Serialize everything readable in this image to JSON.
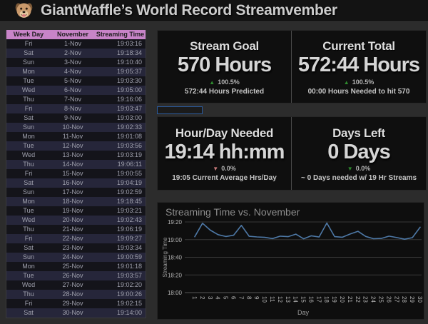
{
  "header": {
    "title": "GiantWaffle’s World Record Streamvember"
  },
  "colors": {
    "page_bg": "#2c2c2c",
    "header_bg": "#131313",
    "panel_bg": "#0f0f0f",
    "table_header_pink": "#c884c8",
    "row_odd": "#14141a",
    "row_even": "#26263a",
    "line_blue": "#4e79a7",
    "green": "#2e8b2e",
    "red": "#c97a7a",
    "grid_gray": "#3a3a3a",
    "selection_blue": "#2b5b9e"
  },
  "table": {
    "columns": [
      "Week Day",
      "November",
      "Streaming Time"
    ],
    "rows": [
      [
        "Fri",
        "1-Nov",
        "19:03:16"
      ],
      [
        "Sat",
        "2-Nov",
        "19:18:34"
      ],
      [
        "Sun",
        "3-Nov",
        "19:10:40"
      ],
      [
        "Mon",
        "4-Nov",
        "19:05:37"
      ],
      [
        "Tue",
        "5-Nov",
        "19:03:30"
      ],
      [
        "Wed",
        "6-Nov",
        "19:05:00"
      ],
      [
        "Thu",
        "7-Nov",
        "19:16:06"
      ],
      [
        "Fri",
        "8-Nov",
        "19:03:47"
      ],
      [
        "Sat",
        "9-Nov",
        "19:03:00"
      ],
      [
        "Sun",
        "10-Nov",
        "19:02:33"
      ],
      [
        "Mon",
        "11-Nov",
        "19:01:08"
      ],
      [
        "Tue",
        "12-Nov",
        "19:03:56"
      ],
      [
        "Wed",
        "13-Nov",
        "19:03:19"
      ],
      [
        "Thu",
        "14-Nov",
        "19:06:11"
      ],
      [
        "Fri",
        "15-Nov",
        "19:00:55"
      ],
      [
        "Sat",
        "16-Nov",
        "19:04:19"
      ],
      [
        "Sun",
        "17-Nov",
        "19:02:59"
      ],
      [
        "Mon",
        "18-Nov",
        "19:18:45"
      ],
      [
        "Tue",
        "19-Nov",
        "19:03:21"
      ],
      [
        "Wed",
        "20-Nov",
        "19:02:43"
      ],
      [
        "Thu",
        "21-Nov",
        "19:06:19"
      ],
      [
        "Fri",
        "22-Nov",
        "19:09:27"
      ],
      [
        "Sat",
        "23-Nov",
        "19:03:34"
      ],
      [
        "Sun",
        "24-Nov",
        "19:00:59"
      ],
      [
        "Mon",
        "25-Nov",
        "19:01:18"
      ],
      [
        "Tue",
        "26-Nov",
        "19:03:57"
      ],
      [
        "Wed",
        "27-Nov",
        "19:02:20"
      ],
      [
        "Thu",
        "28-Nov",
        "19:00:26"
      ],
      [
        "Fri",
        "29-Nov",
        "19:02:15"
      ],
      [
        "Sat",
        "30-Nov",
        "19:14:00"
      ]
    ]
  },
  "cards": [
    {
      "title": "Stream Goal",
      "value": "570 Hours",
      "trend": {
        "direction": "up",
        "pct": "100.5%",
        "color": "#2e8b2e"
      },
      "subtext": "572:44 Hours Predicted"
    },
    {
      "title": "Current Total",
      "value": "572:44 Hours",
      "trend": {
        "direction": "up",
        "pct": "100.5%",
        "color": "#2e8b2e"
      },
      "subtext": "00:00 Hours Needed to hit 570"
    },
    {
      "title": "Hour/Day Needed",
      "value": "19:14 hh:mm",
      "trend": {
        "direction": "down",
        "pct": "0.0%",
        "color": "#c97a7a"
      },
      "subtext": "19:05 Current Average Hrs/Day"
    },
    {
      "title": "Days Left",
      "value": "0 Days",
      "trend": {
        "direction": "down",
        "pct": "0.0%",
        "color": "#2e8b2e"
      },
      "subtext": "~ 0 Days needed w/ 19 Hr Streams"
    }
  ],
  "chart_data": {
    "type": "line",
    "title": "Streaming Time vs. November",
    "xlabel": "Day",
    "ylabel": "Streaming Time",
    "x": [
      1,
      2,
      3,
      4,
      5,
      6,
      7,
      8,
      9,
      10,
      11,
      12,
      13,
      14,
      15,
      16,
      17,
      18,
      19,
      20,
      21,
      22,
      23,
      24,
      25,
      26,
      27,
      28,
      29,
      30
    ],
    "values": [
      "19:03:16",
      "19:18:34",
      "19:10:40",
      "19:05:37",
      "19:03:30",
      "19:05:00",
      "19:16:06",
      "19:03:47",
      "19:03:00",
      "19:02:33",
      "19:01:08",
      "19:03:56",
      "19:03:19",
      "19:06:11",
      "19:00:55",
      "19:04:19",
      "19:02:59",
      "19:18:45",
      "19:03:21",
      "19:02:43",
      "19:06:19",
      "19:09:27",
      "19:03:34",
      "19:00:59",
      "19:01:18",
      "19:03:57",
      "19:02:20",
      "19:00:26",
      "19:02:15",
      "19:14:00"
    ],
    "y_ticks": [
      {
        "label": "19:20",
        "minutes": 1160
      },
      {
        "label": "19:00",
        "minutes": 1140
      },
      {
        "label": "18:40",
        "minutes": 1120
      },
      {
        "label": "18:20",
        "minutes": 1100
      },
      {
        "label": "18:00",
        "minutes": 1080
      }
    ],
    "y_domain_minutes": [
      1080,
      1160
    ],
    "line_color": "#4e79a7",
    "grid": true,
    "legend": "none"
  }
}
